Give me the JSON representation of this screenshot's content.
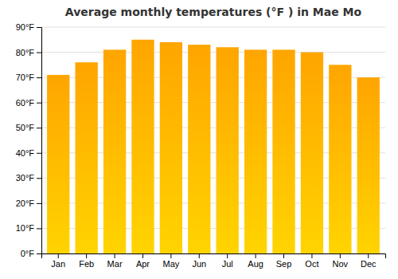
{
  "chart_data": {
    "type": "bar",
    "title": "Average monthly temperatures (°F ) in Mae Mo",
    "categories": [
      "Jan",
      "Feb",
      "Mar",
      "Apr",
      "May",
      "Jun",
      "Jul",
      "Aug",
      "Sep",
      "Oct",
      "Nov",
      "Dec"
    ],
    "values": [
      71,
      76,
      81,
      85,
      84,
      83,
      82,
      81,
      81,
      80,
      75,
      70
    ],
    "color": "#FFA500",
    "ylim": [
      0,
      90
    ],
    "yticks": [
      {
        "value": 0,
        "label": "0°F"
      },
      {
        "value": 10,
        "label": "10°F"
      },
      {
        "value": 20,
        "label": "20°F"
      },
      {
        "value": 30,
        "label": "30°F"
      },
      {
        "value": 40,
        "label": "40°F"
      },
      {
        "value": 50,
        "label": "50°F"
      },
      {
        "value": 60,
        "label": "60°F"
      },
      {
        "value": 70,
        "label": "70°F"
      },
      {
        "value": 80,
        "label": "80°F"
      },
      {
        "value": 90,
        "label": "90°F"
      }
    ],
    "grid": true
  }
}
